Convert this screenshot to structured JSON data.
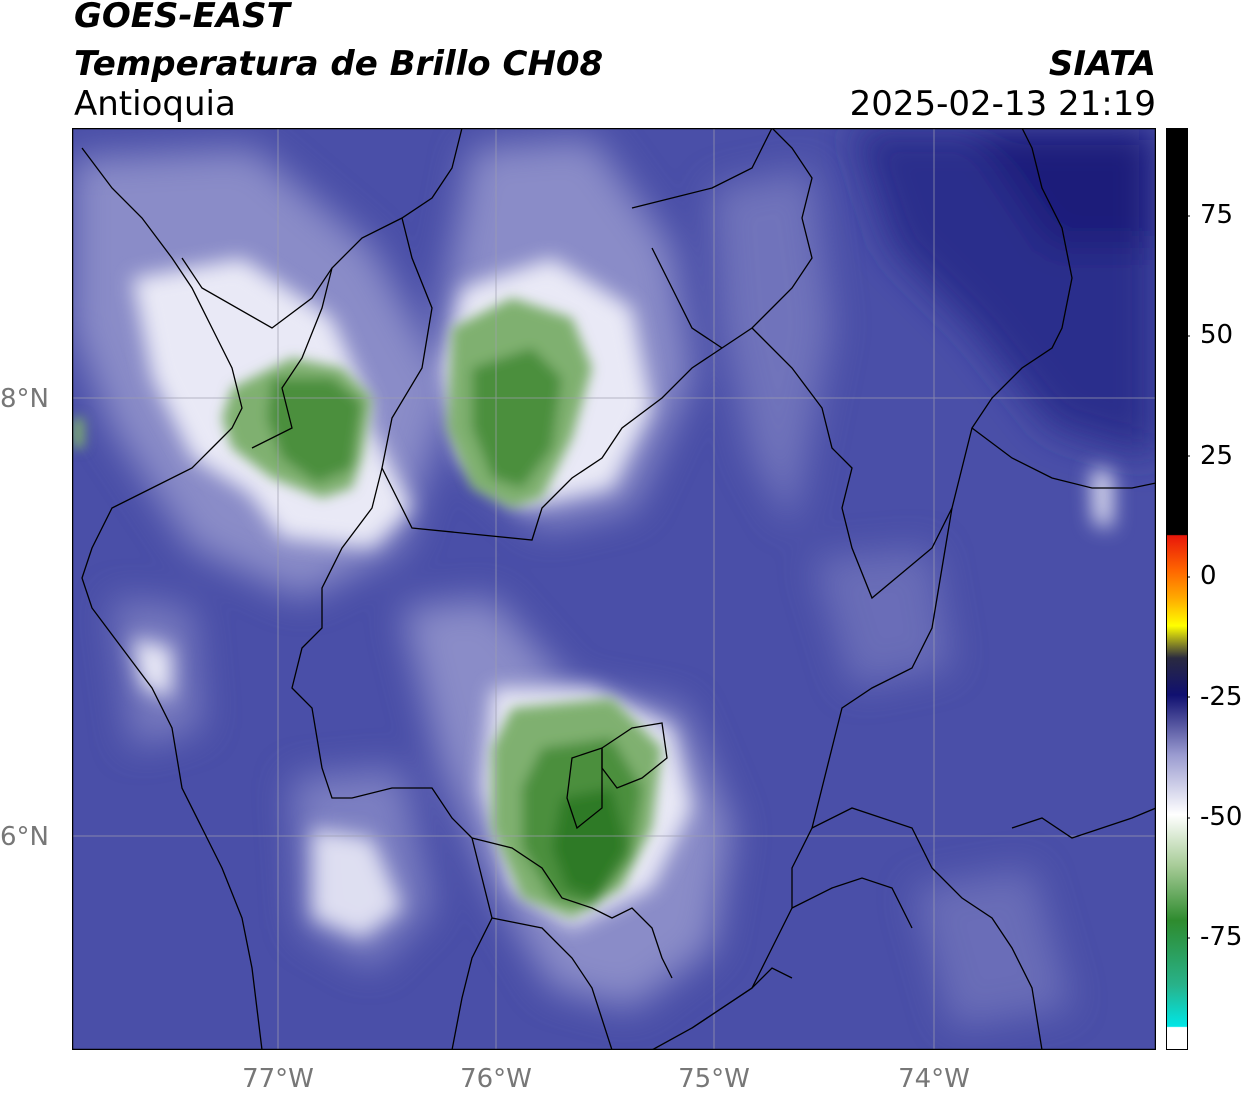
{
  "header": {
    "title_line1": "GOES-EAST",
    "title_line2": "Temperatura de Brillo CH08",
    "region": "Antioquia",
    "organization": "SIATA",
    "datetime": "2025-02-13 21:19"
  },
  "map": {
    "lat_labels": [
      "8°N",
      "6°N"
    ],
    "lon_labels": [
      "77°W",
      "76°W",
      "75°W",
      "74°W"
    ],
    "colors": {
      "background_blue": "#4a4fa8",
      "dark_blue": "#1c1f7a",
      "light_lavender": "#c9cbe8",
      "white_cloud": "#f2f2f8",
      "green_cold": "#4c8f3e",
      "dark_green": "#2f7a25"
    }
  },
  "colorbar": {
    "tick_labels": [
      "75",
      "50",
      "25",
      "0",
      "-25",
      "-50",
      "-75"
    ],
    "colors": {
      "black": "#000000",
      "red": "#e8170a",
      "orange": "#ff9900",
      "yellow": "#ffff00",
      "navy": "#101070",
      "lavender": "#9a9bd0",
      "white": "#ffffff",
      "green": "#2e8b2e",
      "cyan": "#00e6e6"
    }
  }
}
